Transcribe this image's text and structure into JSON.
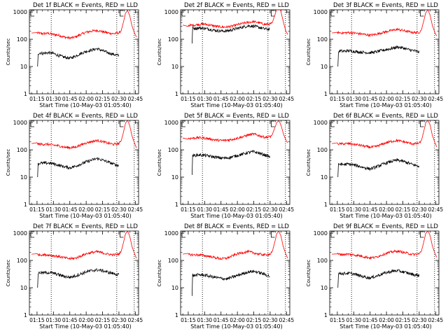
{
  "figure": {
    "x_ticks": [
      "01:15",
      "01:30",
      "01:45",
      "02:00",
      "02:15",
      "02:30",
      "02:45"
    ],
    "x_tick_minutes": [
      75,
      90,
      105,
      120,
      135,
      150,
      165
    ],
    "y_ticks": [
      "1",
      "10",
      "100",
      "1000"
    ],
    "ylabel": "Counts/sec",
    "xlabel": "Start Time (10-May-03 01:05:40)",
    "colors": {
      "events": "#000000",
      "lld": "#ff0000",
      "axes": "#000000"
    }
  },
  "chart_data": [
    {
      "type": "line",
      "title": "Det 1f BLACK = Events, RED = LLD",
      "x_unit": "minutes",
      "xlim": [
        68,
        168
      ],
      "ylim": [
        1,
        1200
      ],
      "yscale": "log",
      "vlines": [
        88,
        148,
        164
      ],
      "series": [
        {
          "color": "#ff0000",
          "x": [
            70,
            75,
            80,
            85,
            90,
            95,
            100,
            105,
            110,
            115,
            120,
            125,
            130,
            135,
            140,
            145,
            150,
            152,
            154,
            156,
            158,
            160,
            162,
            164,
            166
          ],
          "y": [
            170,
            170,
            160,
            165,
            150,
            140,
            120,
            110,
            120,
            150,
            180,
            200,
            210,
            190,
            170,
            160,
            170,
            200,
            400,
            900,
            1150,
            700,
            300,
            180,
            120
          ]
        },
        {
          "color": "#000000",
          "x": [
            75.5,
            76,
            78,
            80,
            85,
            90,
            95,
            100,
            105,
            110,
            115,
            120,
            125,
            130,
            135,
            140,
            145,
            150
          ],
          "y": [
            10,
            30,
            32,
            30,
            32,
            30,
            25,
            22,
            20,
            24,
            30,
            36,
            40,
            45,
            38,
            32,
            28,
            25
          ]
        }
      ]
    },
    {
      "type": "line",
      "title": "Det 2f BLACK = Events, RED = LLD",
      "x_unit": "minutes",
      "xlim": [
        68,
        168
      ],
      "ylim": [
        1,
        1200
      ],
      "yscale": "log",
      "vlines": [
        88,
        148,
        164
      ],
      "series": [
        {
          "color": "#ff0000",
          "x": [
            70,
            75,
            80,
            85,
            90,
            95,
            100,
            105,
            110,
            115,
            120,
            125,
            130,
            135,
            140,
            145,
            150,
            152,
            154,
            156,
            158,
            160,
            162,
            164,
            166
          ],
          "y": [
            330,
            320,
            330,
            350,
            360,
            330,
            300,
            280,
            280,
            300,
            340,
            380,
            420,
            440,
            400,
            350,
            360,
            400,
            700,
            1300,
            1700,
            1000,
            450,
            220,
            150
          ]
        },
        {
          "color": "#000000",
          "x": [
            78.5,
            79,
            80,
            85,
            90,
            95,
            100,
            105,
            110,
            115,
            120,
            125,
            130,
            135,
            140,
            145,
            150
          ],
          "y": [
            70,
            260,
            250,
            260,
            250,
            230,
            210,
            200,
            200,
            220,
            250,
            280,
            310,
            300,
            270,
            240,
            230
          ]
        }
      ]
    },
    {
      "type": "line",
      "title": "Det 3f BLACK = Events, RED = LLD",
      "x_unit": "minutes",
      "xlim": [
        68,
        168
      ],
      "ylim": [
        1,
        1200
      ],
      "yscale": "log",
      "vlines": [
        88,
        148,
        164
      ],
      "series": [
        {
          "color": "#ff0000",
          "x": [
            70,
            75,
            80,
            85,
            90,
            95,
            100,
            105,
            110,
            115,
            120,
            125,
            130,
            135,
            140,
            145,
            150,
            152,
            154,
            156,
            158,
            160,
            162,
            164,
            166
          ],
          "y": [
            170,
            175,
            170,
            175,
            170,
            160,
            150,
            140,
            150,
            170,
            190,
            210,
            230,
            210,
            190,
            175,
            180,
            220,
            450,
            950,
            1200,
            750,
            320,
            190,
            130
          ]
        },
        {
          "color": "#000000",
          "x": [
            75.5,
            76,
            78,
            80,
            85,
            90,
            95,
            100,
            105,
            110,
            115,
            120,
            125,
            130,
            135,
            140,
            145,
            150
          ],
          "y": [
            10,
            35,
            38,
            36,
            38,
            36,
            34,
            33,
            32,
            34,
            38,
            42,
            46,
            52,
            48,
            42,
            38,
            34
          ]
        }
      ]
    },
    {
      "type": "line",
      "title": "Det 4f BLACK = Events, RED = LLD",
      "x_unit": "minutes",
      "xlim": [
        68,
        168
      ],
      "ylim": [
        1,
        1200
      ],
      "yscale": "log",
      "vlines": [
        88,
        148,
        164
      ],
      "series": [
        {
          "color": "#ff0000",
          "x": [
            70,
            75,
            80,
            85,
            90,
            95,
            100,
            105,
            110,
            115,
            120,
            125,
            130,
            135,
            140,
            145,
            150,
            152,
            154,
            156,
            158,
            160,
            162,
            164,
            166
          ],
          "y": [
            170,
            165,
            160,
            160,
            150,
            140,
            125,
            120,
            125,
            150,
            180,
            200,
            220,
            200,
            175,
            160,
            170,
            210,
            420,
            950,
            1200,
            750,
            320,
            190,
            120
          ]
        },
        {
          "color": "#000000",
          "x": [
            75.5,
            76,
            78,
            80,
            85,
            90,
            95,
            100,
            105,
            110,
            115,
            120,
            125,
            130,
            135,
            140,
            145,
            150
          ],
          "y": [
            10,
            30,
            33,
            32,
            33,
            31,
            27,
            24,
            22,
            25,
            30,
            36,
            42,
            48,
            42,
            36,
            30,
            26
          ]
        }
      ]
    },
    {
      "type": "line",
      "title": "Det 5f BLACK = Events, RED = LLD",
      "x_unit": "minutes",
      "xlim": [
        68,
        168
      ],
      "ylim": [
        1,
        1200
      ],
      "yscale": "log",
      "vlines": [
        88,
        148,
        164
      ],
      "series": [
        {
          "color": "#ff0000",
          "x": [
            70,
            75,
            80,
            85,
            90,
            95,
            100,
            105,
            110,
            115,
            120,
            125,
            130,
            135,
            140,
            145,
            150,
            152,
            154,
            156,
            158,
            160,
            162,
            164,
            166
          ],
          "y": [
            270,
            260,
            270,
            280,
            270,
            250,
            230,
            220,
            225,
            240,
            270,
            300,
            350,
            380,
            330,
            290,
            300,
            360,
            600,
            1000,
            1150,
            800,
            400,
            250,
            180
          ]
        },
        {
          "color": "#000000",
          "x": [
            78.5,
            79,
            80,
            85,
            90,
            95,
            100,
            105,
            110,
            115,
            120,
            125,
            130,
            135,
            140,
            145,
            150
          ],
          "y": [
            12,
            65,
            62,
            65,
            63,
            58,
            54,
            50,
            50,
            55,
            62,
            70,
            80,
            85,
            75,
            65,
            55
          ]
        }
      ]
    },
    {
      "type": "line",
      "title": "Det 6f BLACK = Events, RED = LLD",
      "x_unit": "minutes",
      "xlim": [
        68,
        168
      ],
      "ylim": [
        1,
        1200
      ],
      "yscale": "log",
      "vlines": [
        88,
        148,
        164
      ],
      "series": [
        {
          "color": "#ff0000",
          "x": [
            70,
            75,
            80,
            85,
            90,
            95,
            100,
            105,
            110,
            115,
            120,
            125,
            130,
            135,
            140,
            145,
            150,
            152,
            154,
            156,
            158,
            160,
            162,
            164,
            166
          ],
          "y": [
            170,
            165,
            165,
            170,
            160,
            150,
            135,
            125,
            130,
            155,
            185,
            205,
            220,
            200,
            180,
            165,
            175,
            220,
            450,
            1000,
            1200,
            800,
            340,
            200,
            130
          ]
        },
        {
          "color": "#000000",
          "x": [
            75.5,
            76,
            78,
            80,
            85,
            90,
            95,
            100,
            105,
            110,
            115,
            120,
            125,
            130,
            135,
            140,
            145,
            150
          ],
          "y": [
            10,
            28,
            30,
            29,
            30,
            28,
            25,
            22,
            20,
            23,
            28,
            33,
            38,
            42,
            38,
            33,
            28,
            25
          ]
        }
      ]
    },
    {
      "type": "line",
      "title": "Det 7f BLACK = Events, RED = LLD",
      "x_unit": "minutes",
      "xlim": [
        68,
        168
      ],
      "ylim": [
        1,
        1200
      ],
      "yscale": "log",
      "vlines": [
        88,
        148,
        164
      ],
      "series": [
        {
          "color": "#ff0000",
          "x": [
            70,
            75,
            80,
            85,
            90,
            95,
            100,
            105,
            110,
            115,
            120,
            125,
            130,
            135,
            140,
            145,
            150,
            152,
            154,
            156,
            158,
            160,
            162,
            164,
            166
          ],
          "y": [
            170,
            165,
            160,
            160,
            150,
            140,
            125,
            115,
            120,
            145,
            175,
            195,
            210,
            190,
            170,
            160,
            170,
            210,
            430,
            950,
            1200,
            750,
            320,
            190,
            120
          ]
        },
        {
          "color": "#000000",
          "x": [
            75.5,
            76,
            78,
            80,
            85,
            90,
            95,
            100,
            105,
            110,
            115,
            120,
            125,
            130,
            135,
            140,
            145,
            150
          ],
          "y": [
            10,
            34,
            36,
            35,
            36,
            34,
            30,
            26,
            24,
            27,
            32,
            38,
            42,
            45,
            42,
            37,
            33,
            30
          ]
        }
      ]
    },
    {
      "type": "line",
      "title": "Det 8f BLACK = Events, RED = LLD",
      "x_unit": "minutes",
      "xlim": [
        68,
        168
      ],
      "ylim": [
        1,
        1200
      ],
      "yscale": "log",
      "vlines": [
        88,
        148,
        164
      ],
      "series": [
        {
          "color": "#ff0000",
          "x": [
            70,
            75,
            80,
            85,
            90,
            95,
            100,
            105,
            110,
            115,
            120,
            125,
            130,
            135,
            140,
            145,
            150,
            152,
            154,
            156,
            158,
            160,
            162,
            164,
            166
          ],
          "y": [
            170,
            165,
            160,
            160,
            150,
            140,
            125,
            115,
            120,
            145,
            175,
            195,
            210,
            190,
            170,
            160,
            170,
            210,
            430,
            950,
            1200,
            750,
            320,
            190,
            120
          ]
        },
        {
          "color": "#000000",
          "x": [
            78.5,
            79,
            80,
            85,
            90,
            95,
            100,
            105,
            110,
            115,
            120,
            125,
            130,
            135,
            140,
            145,
            150
          ],
          "y": [
            5,
            30,
            28,
            30,
            29,
            26,
            24,
            22,
            21,
            24,
            28,
            33,
            38,
            40,
            36,
            31,
            26
          ]
        }
      ]
    },
    {
      "type": "line",
      "title": "Det 9f BLACK = Events, RED = LLD",
      "x_unit": "minutes",
      "xlim": [
        68,
        168
      ],
      "ylim": [
        1,
        1200
      ],
      "yscale": "log",
      "vlines": [
        88,
        148,
        164
      ],
      "series": [
        {
          "color": "#ff0000",
          "x": [
            70,
            75,
            80,
            85,
            90,
            95,
            100,
            105,
            110,
            115,
            120,
            125,
            130,
            135,
            140,
            145,
            150,
            152,
            154,
            156,
            158,
            160,
            162,
            164,
            166
          ],
          "y": [
            170,
            170,
            165,
            170,
            160,
            150,
            135,
            125,
            130,
            155,
            185,
            205,
            220,
            200,
            180,
            165,
            175,
            220,
            450,
            1000,
            1200,
            800,
            340,
            200,
            130
          ]
        },
        {
          "color": "#000000",
          "x": [
            75.5,
            76,
            78,
            80,
            85,
            90,
            95,
            100,
            105,
            110,
            115,
            120,
            125,
            130,
            135,
            140,
            145,
            150
          ],
          "y": [
            10,
            32,
            34,
            33,
            34,
            32,
            28,
            25,
            23,
            26,
            31,
            36,
            40,
            42,
            38,
            34,
            30,
            28
          ]
        }
      ]
    }
  ]
}
